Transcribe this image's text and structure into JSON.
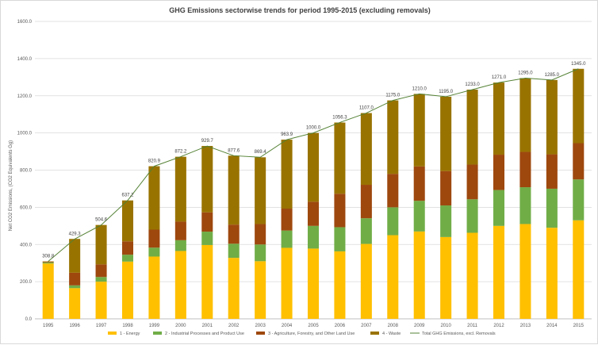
{
  "chart_data": {
    "type": "bar",
    "stacked": true,
    "title": "GHG Emissions sectorwise trends for period 1995-2015 (excluding removals)",
    "xlabel": "",
    "ylabel": "Net CO2 Emissions, (CO2 Equivalents Gg)",
    "ylim": [
      0,
      1600
    ],
    "yticks": [
      "0.0",
      "200.0",
      "400.0",
      "600.0",
      "800.0",
      "1000.0",
      "1200.0",
      "1400.0",
      "1600.0"
    ],
    "grid": true,
    "legend_position": "bottom",
    "categories": [
      "1995",
      "1996",
      "1997",
      "1998",
      "1999",
      "2000",
      "2001",
      "2002",
      "2003",
      "2004",
      "2005",
      "2006",
      "2007",
      "2008",
      "2009",
      "2010",
      "2011",
      "2012",
      "2013",
      "2014",
      "2015"
    ],
    "series": [
      {
        "name": "1 - Energy",
        "color": "#ffc000",
        "values": [
          298,
          165,
          200,
          308,
          335,
          365,
          397,
          328,
          310,
          382,
          378,
          363,
          403,
          450,
          470,
          440,
          463,
          500,
          510,
          490,
          530
        ]
      },
      {
        "name": "2 - Industrial Processes and Product Use",
        "color": "#70ad47",
        "values": [
          5,
          15,
          25,
          37,
          48,
          58,
          72,
          76,
          90,
          93,
          122,
          130,
          138,
          150,
          165,
          170,
          180,
          193,
          198,
          210,
          220
        ]
      },
      {
        "name": "3 - Agriculture, Forestry, and Other Land Use",
        "color": "#9e480e",
        "values": [
          3,
          68,
          68,
          72,
          97,
          100,
          104,
          103,
          110,
          118,
          130,
          180,
          180,
          180,
          185,
          185,
          187,
          190,
          190,
          185,
          195
        ]
      },
      {
        "name": "4 - Waste",
        "color": "#997300",
        "values": [
          3,
          182,
          212,
          220,
          341,
          349,
          357,
          371,
          359,
          371,
          370,
          383,
          386,
          395,
          390,
          400,
          403,
          388,
          397,
          400,
          400
        ]
      }
    ],
    "line": {
      "name": "Total GHG Emissions, excl. Removals",
      "color": "#548235",
      "values": [
        308.8,
        429.3,
        504.6,
        637.2,
        820.9,
        872.2,
        929.7,
        877.6,
        869.4,
        963.9,
        1000.0,
        1056.3,
        1107.0,
        1175.0,
        1210.0,
        1195.0,
        1233.0,
        1271.0,
        1295.0,
        1285.0,
        1345.0
      ],
      "labels": [
        "308.8",
        "429.3",
        "504.6",
        "637.2",
        "820.9",
        "872.2",
        "929.7",
        "877.6",
        "869.4",
        "963.9",
        "1000.0",
        "1056.3",
        "1107.0",
        "1175.0",
        "1210.0",
        "1195.0",
        "1233.0",
        "1271.0",
        "1295.0",
        "1285.0",
        "1345.0"
      ]
    }
  }
}
